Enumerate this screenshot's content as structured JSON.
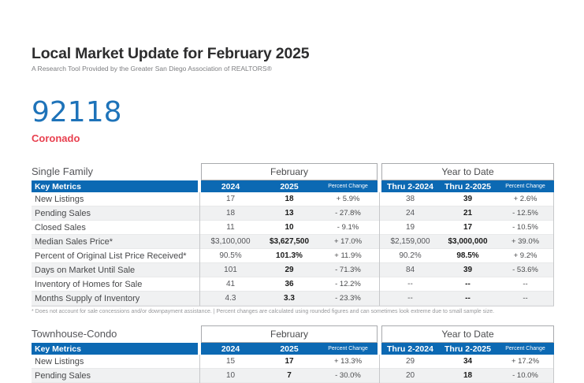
{
  "report": {
    "title": "Local Market Update for February 2025",
    "subtitle": "A Research Tool Provided by the Greater San Diego Association of REALTORS®",
    "zip": "92118",
    "area": "Coronado",
    "footnote": "* Does not account for sale concessions and/or downpayment assistance. | Percent changes are calculated using rounded figures and can sometimes look extreme due to small sample size.",
    "colors": {
      "header_bar_blue": "#0c69b3",
      "zip_blue": "#1e73b9",
      "area_red": "#e8404f",
      "row_stripe": "#f0f1f2"
    }
  },
  "table_headers": {
    "metrics_label": "Key Metrics",
    "month_group": "February",
    "ytd_group": "Year to Date",
    "col_2024": "2024",
    "col_2025": "2025",
    "col_pct": "Percent Change",
    "col_thru_2024": "Thru 2-2024",
    "col_thru_2025": "Thru 2-2025"
  },
  "tables": [
    {
      "section": "Single Family",
      "rows": [
        {
          "metric": "New Listings",
          "feb_2024": "17",
          "feb_2025": "18",
          "feb_pct": "+ 5.9%",
          "ytd_2024": "38",
          "ytd_2025": "39",
          "ytd_pct": "+ 2.6%"
        },
        {
          "metric": "Pending Sales",
          "feb_2024": "18",
          "feb_2025": "13",
          "feb_pct": "- 27.8%",
          "ytd_2024": "24",
          "ytd_2025": "21",
          "ytd_pct": "- 12.5%"
        },
        {
          "metric": "Closed Sales",
          "feb_2024": "11",
          "feb_2025": "10",
          "feb_pct": "- 9.1%",
          "ytd_2024": "19",
          "ytd_2025": "17",
          "ytd_pct": "- 10.5%"
        },
        {
          "metric": "Median Sales Price*",
          "feb_2024": "$3,100,000",
          "feb_2025": "$3,627,500",
          "feb_pct": "+ 17.0%",
          "ytd_2024": "$2,159,000",
          "ytd_2025": "$3,000,000",
          "ytd_pct": "+ 39.0%"
        },
        {
          "metric": "Percent of Original List Price Received*",
          "feb_2024": "90.5%",
          "feb_2025": "101.3%",
          "feb_pct": "+ 11.9%",
          "ytd_2024": "90.2%",
          "ytd_2025": "98.5%",
          "ytd_pct": "+ 9.2%"
        },
        {
          "metric": "Days on Market Until Sale",
          "feb_2024": "101",
          "feb_2025": "29",
          "feb_pct": "- 71.3%",
          "ytd_2024": "84",
          "ytd_2025": "39",
          "ytd_pct": "- 53.6%"
        },
        {
          "metric": "Inventory of Homes for Sale",
          "feb_2024": "41",
          "feb_2025": "36",
          "feb_pct": "- 12.2%",
          "ytd_2024": "--",
          "ytd_2025": "--",
          "ytd_pct": "--"
        },
        {
          "metric": "Months Supply of Inventory",
          "feb_2024": "4.3",
          "feb_2025": "3.3",
          "feb_pct": "- 23.3%",
          "ytd_2024": "--",
          "ytd_2025": "--",
          "ytd_pct": "--"
        }
      ]
    },
    {
      "section": "Townhouse-Condo",
      "rows": [
        {
          "metric": "New Listings",
          "feb_2024": "15",
          "feb_2025": "17",
          "feb_pct": "+ 13.3%",
          "ytd_2024": "29",
          "ytd_2025": "34",
          "ytd_pct": "+ 17.2%"
        },
        {
          "metric": "Pending Sales",
          "feb_2024": "10",
          "feb_2025": "7",
          "feb_pct": "- 30.0%",
          "ytd_2024": "20",
          "ytd_2025": "18",
          "ytd_pct": "- 10.0%"
        }
      ]
    }
  ]
}
